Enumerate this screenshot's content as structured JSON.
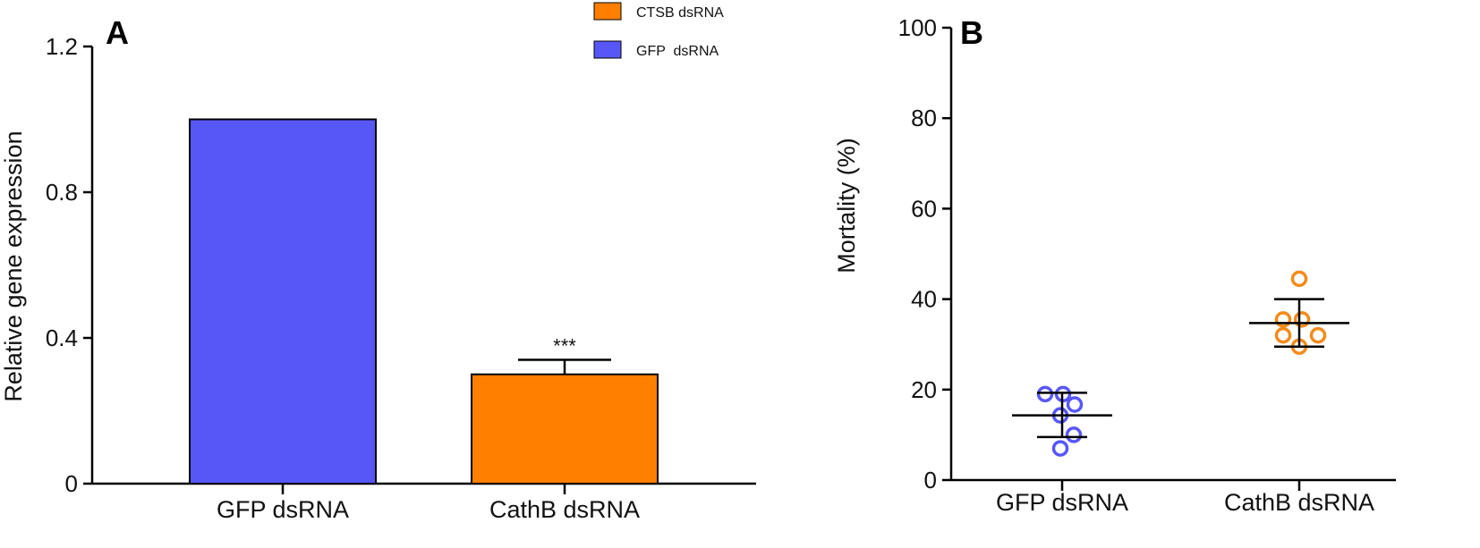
{
  "chart_data": [
    {
      "panel": "A",
      "type": "bar",
      "ylabel": "Relative gene expression",
      "ylim": [
        0,
        1.2
      ],
      "yticks": [
        "0",
        "0.4",
        "0.8",
        "1.2"
      ],
      "ytick_values": [
        0,
        0.4,
        0.8,
        1.2
      ],
      "categories": [
        "GFP dsRNA",
        "CathB dsRNA"
      ],
      "values": [
        1.0,
        0.3
      ],
      "errors": [
        0,
        0.04
      ],
      "colors": [
        "#5757F8",
        "#FF7F00"
      ],
      "annotations": [
        {
          "category": "CathB dsRNA",
          "text": "***"
        }
      ],
      "legend": {
        "placement": "top-right",
        "entries": [
          {
            "label": "CTSB dsRNA",
            "color": "#FF7F00"
          },
          {
            "label": "GFP  dsRNA",
            "color": "#5757F8"
          }
        ]
      },
      "grid": false
    },
    {
      "panel": "B",
      "type": "scatter",
      "ylabel": "Mortality (%)",
      "ylim": [
        0,
        100
      ],
      "yticks": [
        "0",
        "20",
        "40",
        "60",
        "80",
        "100"
      ],
      "ytick_values": [
        0,
        20,
        40,
        60,
        80,
        100
      ],
      "categories": [
        "GFP dsRNA",
        "CathB dsRNA"
      ],
      "series": [
        {
          "category": "GFP dsRNA",
          "color": "#5757F8",
          "points": [
            19,
            19,
            16.7,
            14.3,
            10,
            7
          ],
          "mean": 14.3,
          "sd_low": 9.5,
          "sd_high": 19.3
        },
        {
          "category": "CathB dsRNA",
          "color": "#F38B1C",
          "points": [
            44.5,
            35.5,
            35.5,
            32,
            32,
            29.5
          ],
          "mean": 34.7,
          "sd_low": 29.5,
          "sd_high": 40
        }
      ],
      "grid": false
    }
  ]
}
